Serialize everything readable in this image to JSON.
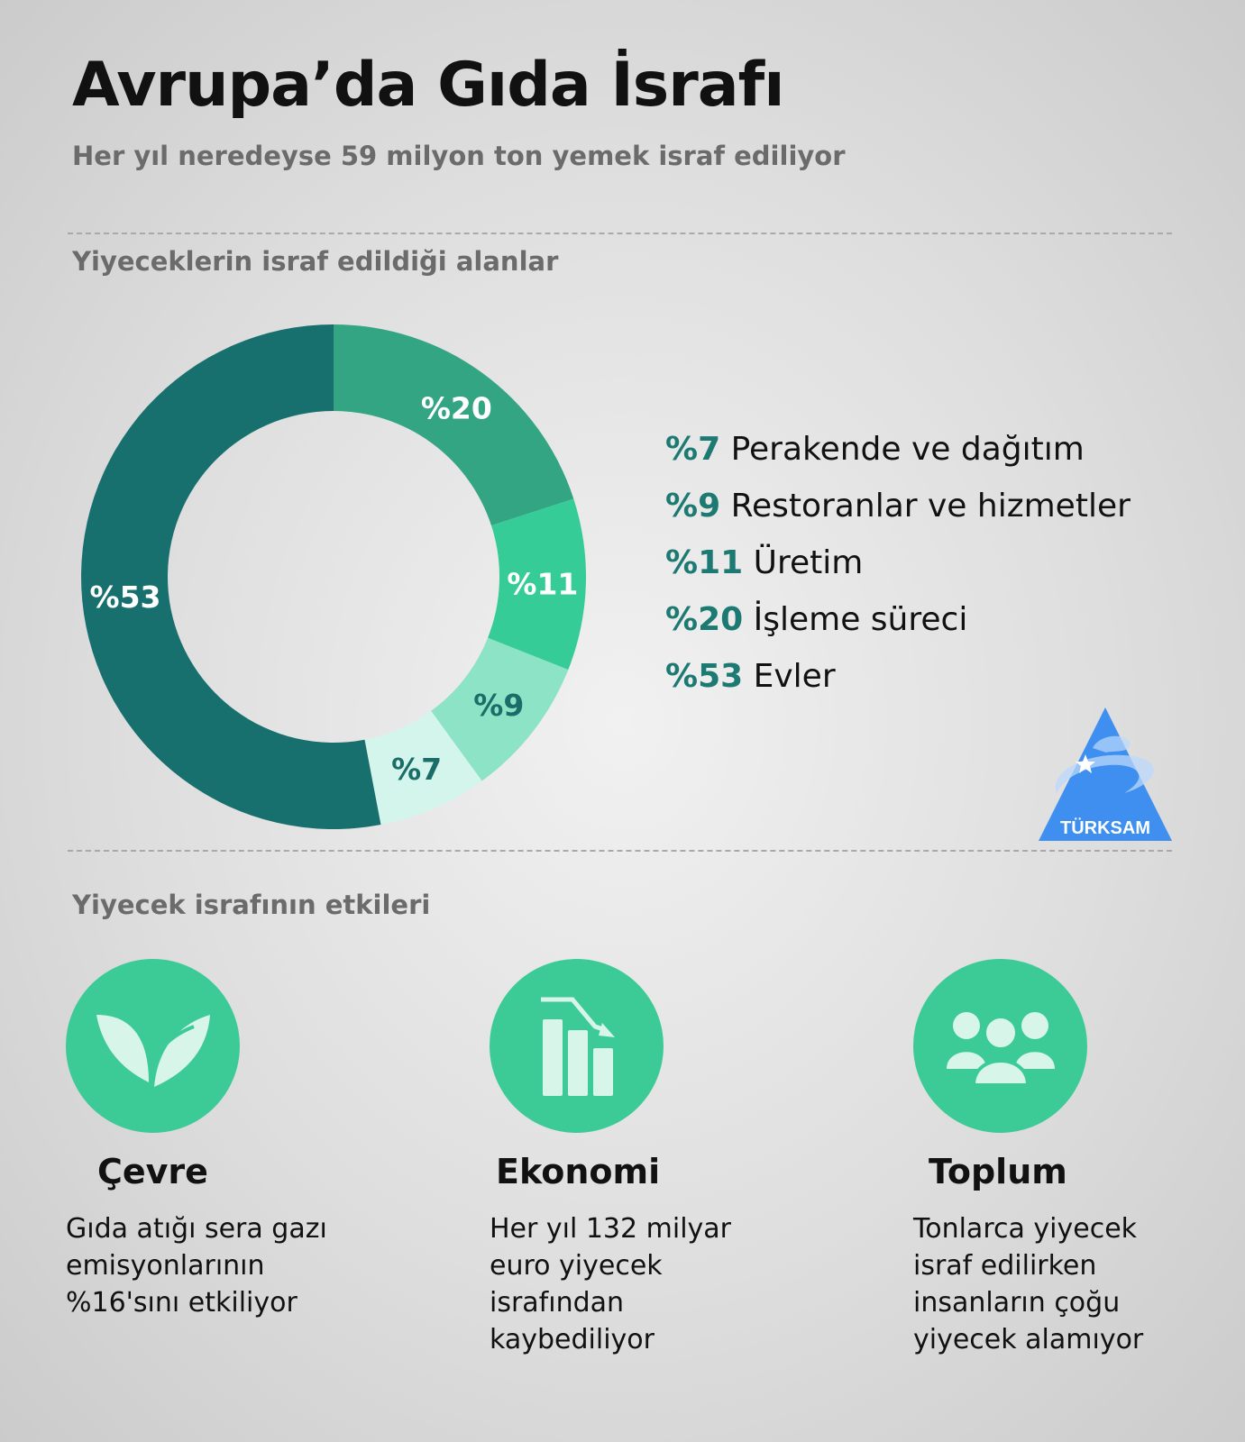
{
  "header": {
    "title": "Avrupa’da Gıda İsrafı",
    "subtitle": "Her yıl neredeyse 59 milyon ton yemek israf ediliyor"
  },
  "section1": {
    "title": "Yiyeceklerin israf edildiği alanlar"
  },
  "chart_data": {
    "type": "pie",
    "donut": true,
    "start": "top",
    "direction": "clockwise",
    "slices": [
      {
        "label": "%20",
        "category": "İşleme süreci",
        "value": 20,
        "color": "#33a583",
        "label_color": "#ffffff"
      },
      {
        "label": "%11",
        "category": "Üretim",
        "value": 11,
        "color": "#35cc98",
        "label_color": "#ffffff"
      },
      {
        "label": "%9",
        "category": "Restoranlar ve hizmetler",
        "value": 9,
        "color": "#8de3c6",
        "label_color": "#1a6d68"
      },
      {
        "label": "%7",
        "category": "Perakende ve dağıtım",
        "value": 7,
        "color": "#d4f5ec",
        "label_color": "#1a6d68"
      },
      {
        "label": "%53",
        "category": "Evler",
        "value": 53,
        "color": "#176f6e",
        "label_color": "#ffffff"
      }
    ],
    "legend": [
      {
        "pct": "%7",
        "text": "Perakende ve dağıtım"
      },
      {
        "pct": "%9",
        "text": "Restoranlar ve hizmetler"
      },
      {
        "pct": "%11",
        "text": "Üretim"
      },
      {
        "pct": "%20",
        "text": "İşleme süreci"
      },
      {
        "pct": "%53",
        "text": "Evler"
      }
    ],
    "legend_placement": "right"
  },
  "logo": {
    "text": "TÜRKSAM",
    "color": "#3e8ff0"
  },
  "section2": {
    "title": "Yiyecek israfının etkileri",
    "items": [
      {
        "icon": "leaf-icon",
        "title": "Çevre",
        "text": "Gıda atığı sera gazı emisyonlarının %16'sını etkiliyor"
      },
      {
        "icon": "declining-chart-icon",
        "title": "Ekonomi",
        "text": "Her yıl 132 milyar euro yiyecek israfından kaybediliyor"
      },
      {
        "icon": "people-group-icon",
        "title": "Toplum",
        "text": "Tonlarca yiyecek israf edilirken insanların çoğu yiyecek alamıyor"
      }
    ]
  },
  "colors": {
    "accent": "#3ccb97",
    "icon_fg": "#d8f5e9",
    "legend_pct": "#1d7a72"
  }
}
